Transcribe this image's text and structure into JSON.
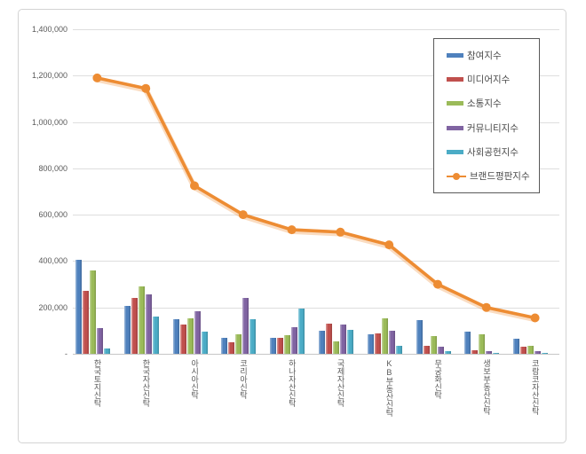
{
  "chart_data": {
    "type": "bar+line",
    "title": "",
    "categories": [
      "한국토지신탁",
      "한국자산신탁",
      "아시아신탁",
      "코리아신탁",
      "하나자산신탁",
      "국제자산신탁",
      "KB부동산신탁",
      "무궁화신탁",
      "생보부동산신탁",
      "코람코자산신탁"
    ],
    "series": [
      {
        "name": "참여지수",
        "type": "bar",
        "color": "#4F81BD",
        "values": [
          405000,
          205000,
          150000,
          70000,
          70000,
          100000,
          85000,
          145000,
          95000,
          65000
        ]
      },
      {
        "name": "미디어지수",
        "type": "bar",
        "color": "#C0504D",
        "values": [
          270000,
          240000,
          125000,
          50000,
          70000,
          130000,
          90000,
          35000,
          15000,
          30000
        ]
      },
      {
        "name": "소통지수",
        "type": "bar",
        "color": "#9BBB59",
        "values": [
          360000,
          290000,
          155000,
          85000,
          80000,
          55000,
          155000,
          75000,
          85000,
          35000
        ]
      },
      {
        "name": "커뮤니티지수",
        "type": "bar",
        "color": "#8064A2",
        "values": [
          110000,
          255000,
          185000,
          240000,
          115000,
          125000,
          100000,
          30000,
          10000,
          10000
        ]
      },
      {
        "name": "사회공헌지수",
        "type": "bar",
        "color": "#4BACC6",
        "values": [
          25000,
          160000,
          95000,
          150000,
          195000,
          105000,
          35000,
          10000,
          5000,
          5000
        ]
      },
      {
        "name": "브랜드평판지수",
        "type": "line",
        "color": "#ED8C33",
        "values": [
          1190000,
          1145000,
          725000,
          600000,
          535000,
          525000,
          470000,
          300000,
          200000,
          155000
        ]
      }
    ],
    "y_axis_ticks": [
      "-",
      "200,000",
      "400,000",
      "600,000",
      "800,000",
      "1,000,000",
      "1,200,000",
      "1,400,000"
    ],
    "ylim": [
      0,
      1400000
    ],
    "grid_step": 200000,
    "grid": true,
    "legend_position": "inside-top-right",
    "colors": {
      "background": "#ffffff",
      "frame_border": "#d3d3d3",
      "gridline": "#dedede",
      "axis_text": "#595959",
      "legend_border": "#595959"
    }
  }
}
